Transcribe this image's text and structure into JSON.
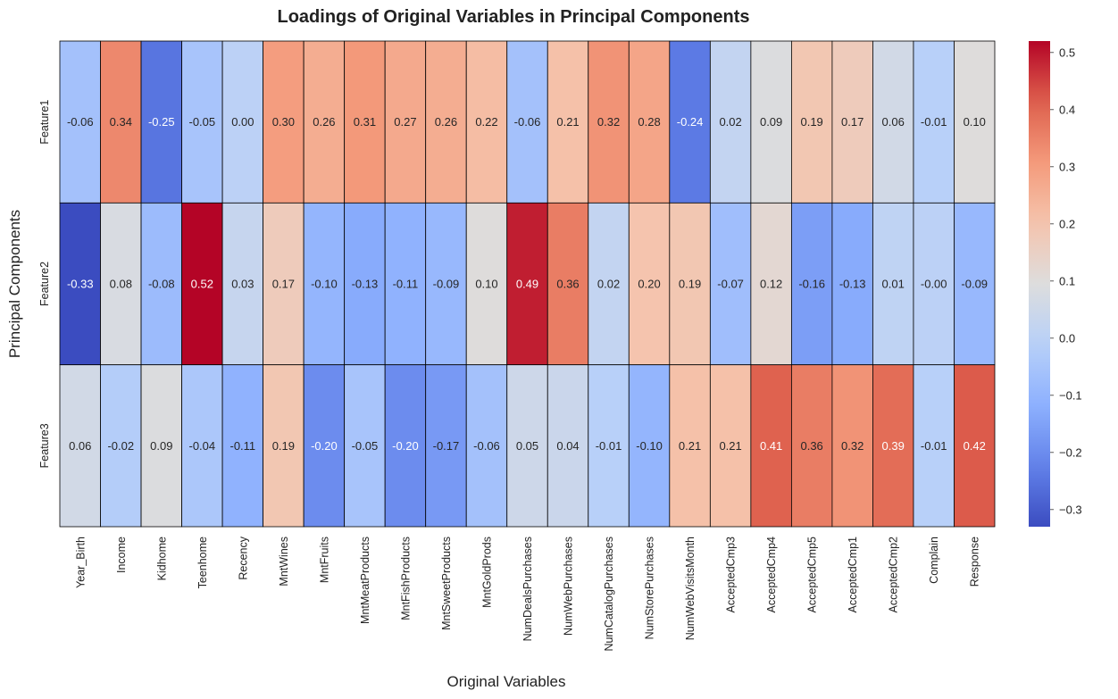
{
  "chart_data": {
    "type": "heatmap",
    "title": "Loadings of Original Variables in Principal Components",
    "xlabel": "Original Variables",
    "ylabel": "Principal Components",
    "x_categories": [
      "Year_Birth",
      "Income",
      "Kidhome",
      "Teenhome",
      "Recency",
      "MntWines",
      "MntFruits",
      "MntMeatProducts",
      "MntFishProducts",
      "MntSweetProducts",
      "MntGoldProds",
      "NumDealsPurchases",
      "NumWebPurchases",
      "NumCatalogPurchases",
      "NumStorePurchases",
      "NumWebVisitsMonth",
      "AcceptedCmp3",
      "AcceptedCmp4",
      "AcceptedCmp5",
      "AcceptedCmp1",
      "AcceptedCmp2",
      "Complain",
      "Response"
    ],
    "y_categories": [
      "Feature1",
      "Feature2",
      "Feature3"
    ],
    "values": [
      [
        -0.06,
        0.34,
        -0.25,
        -0.05,
        0.0,
        0.3,
        0.26,
        0.31,
        0.27,
        0.26,
        0.22,
        -0.06,
        0.21,
        0.32,
        0.28,
        -0.24,
        0.02,
        0.09,
        0.19,
        0.17,
        0.06,
        -0.01,
        0.1
      ],
      [
        -0.33,
        0.08,
        -0.08,
        0.52,
        0.03,
        0.17,
        -0.1,
        -0.13,
        -0.11,
        -0.09,
        0.1,
        0.49,
        0.36,
        0.02,
        0.2,
        0.19,
        -0.07,
        0.12,
        -0.16,
        -0.13,
        0.01,
        -0.0,
        -0.09
      ],
      [
        0.06,
        -0.02,
        0.09,
        -0.04,
        -0.11,
        0.19,
        -0.2,
        -0.05,
        -0.2,
        -0.17,
        -0.06,
        0.05,
        0.04,
        -0.01,
        -0.1,
        0.21,
        0.21,
        0.41,
        0.36,
        0.32,
        0.39,
        -0.01,
        0.42
      ]
    ],
    "value_labels": [
      [
        "-0.06",
        "0.34",
        "-0.25",
        "-0.05",
        "0.00",
        "0.30",
        "0.26",
        "0.31",
        "0.27",
        "0.26",
        "0.22",
        "-0.06",
        "0.21",
        "0.32",
        "0.28",
        "-0.24",
        "0.02",
        "0.09",
        "0.19",
        "0.17",
        "0.06",
        "-0.01",
        "0.10"
      ],
      [
        "-0.33",
        "0.08",
        "-0.08",
        "0.52",
        "0.03",
        "0.17",
        "-0.10",
        "-0.13",
        "-0.11",
        "-0.09",
        "0.10",
        "0.49",
        "0.36",
        "0.02",
        "0.20",
        "0.19",
        "-0.07",
        "0.12",
        "-0.16",
        "-0.13",
        "0.01",
        "-0.00",
        "-0.09"
      ],
      [
        "0.06",
        "-0.02",
        "0.09",
        "-0.04",
        "-0.11",
        "0.19",
        "-0.20",
        "-0.05",
        "-0.20",
        "-0.17",
        "-0.06",
        "0.05",
        "0.04",
        "-0.01",
        "-0.10",
        "0.21",
        "0.21",
        "0.41",
        "0.36",
        "0.32",
        "0.39",
        "-0.01",
        "0.42"
      ]
    ],
    "colormap": "coolwarm",
    "vmin": -0.33,
    "vmax": 0.52,
    "colorbar_ticks": [
      -0.3,
      -0.2,
      -0.1,
      0.0,
      0.1,
      0.2,
      0.3,
      0.4,
      0.5
    ],
    "colorbar_tick_labels": [
      "−0.3",
      "−0.2",
      "−0.1",
      "0.0",
      "0.1",
      "0.2",
      "0.3",
      "0.4",
      "0.5"
    ],
    "cell_border_color": "#000000",
    "text_color_dark": "#262626",
    "text_color_light": "#ffffff"
  }
}
